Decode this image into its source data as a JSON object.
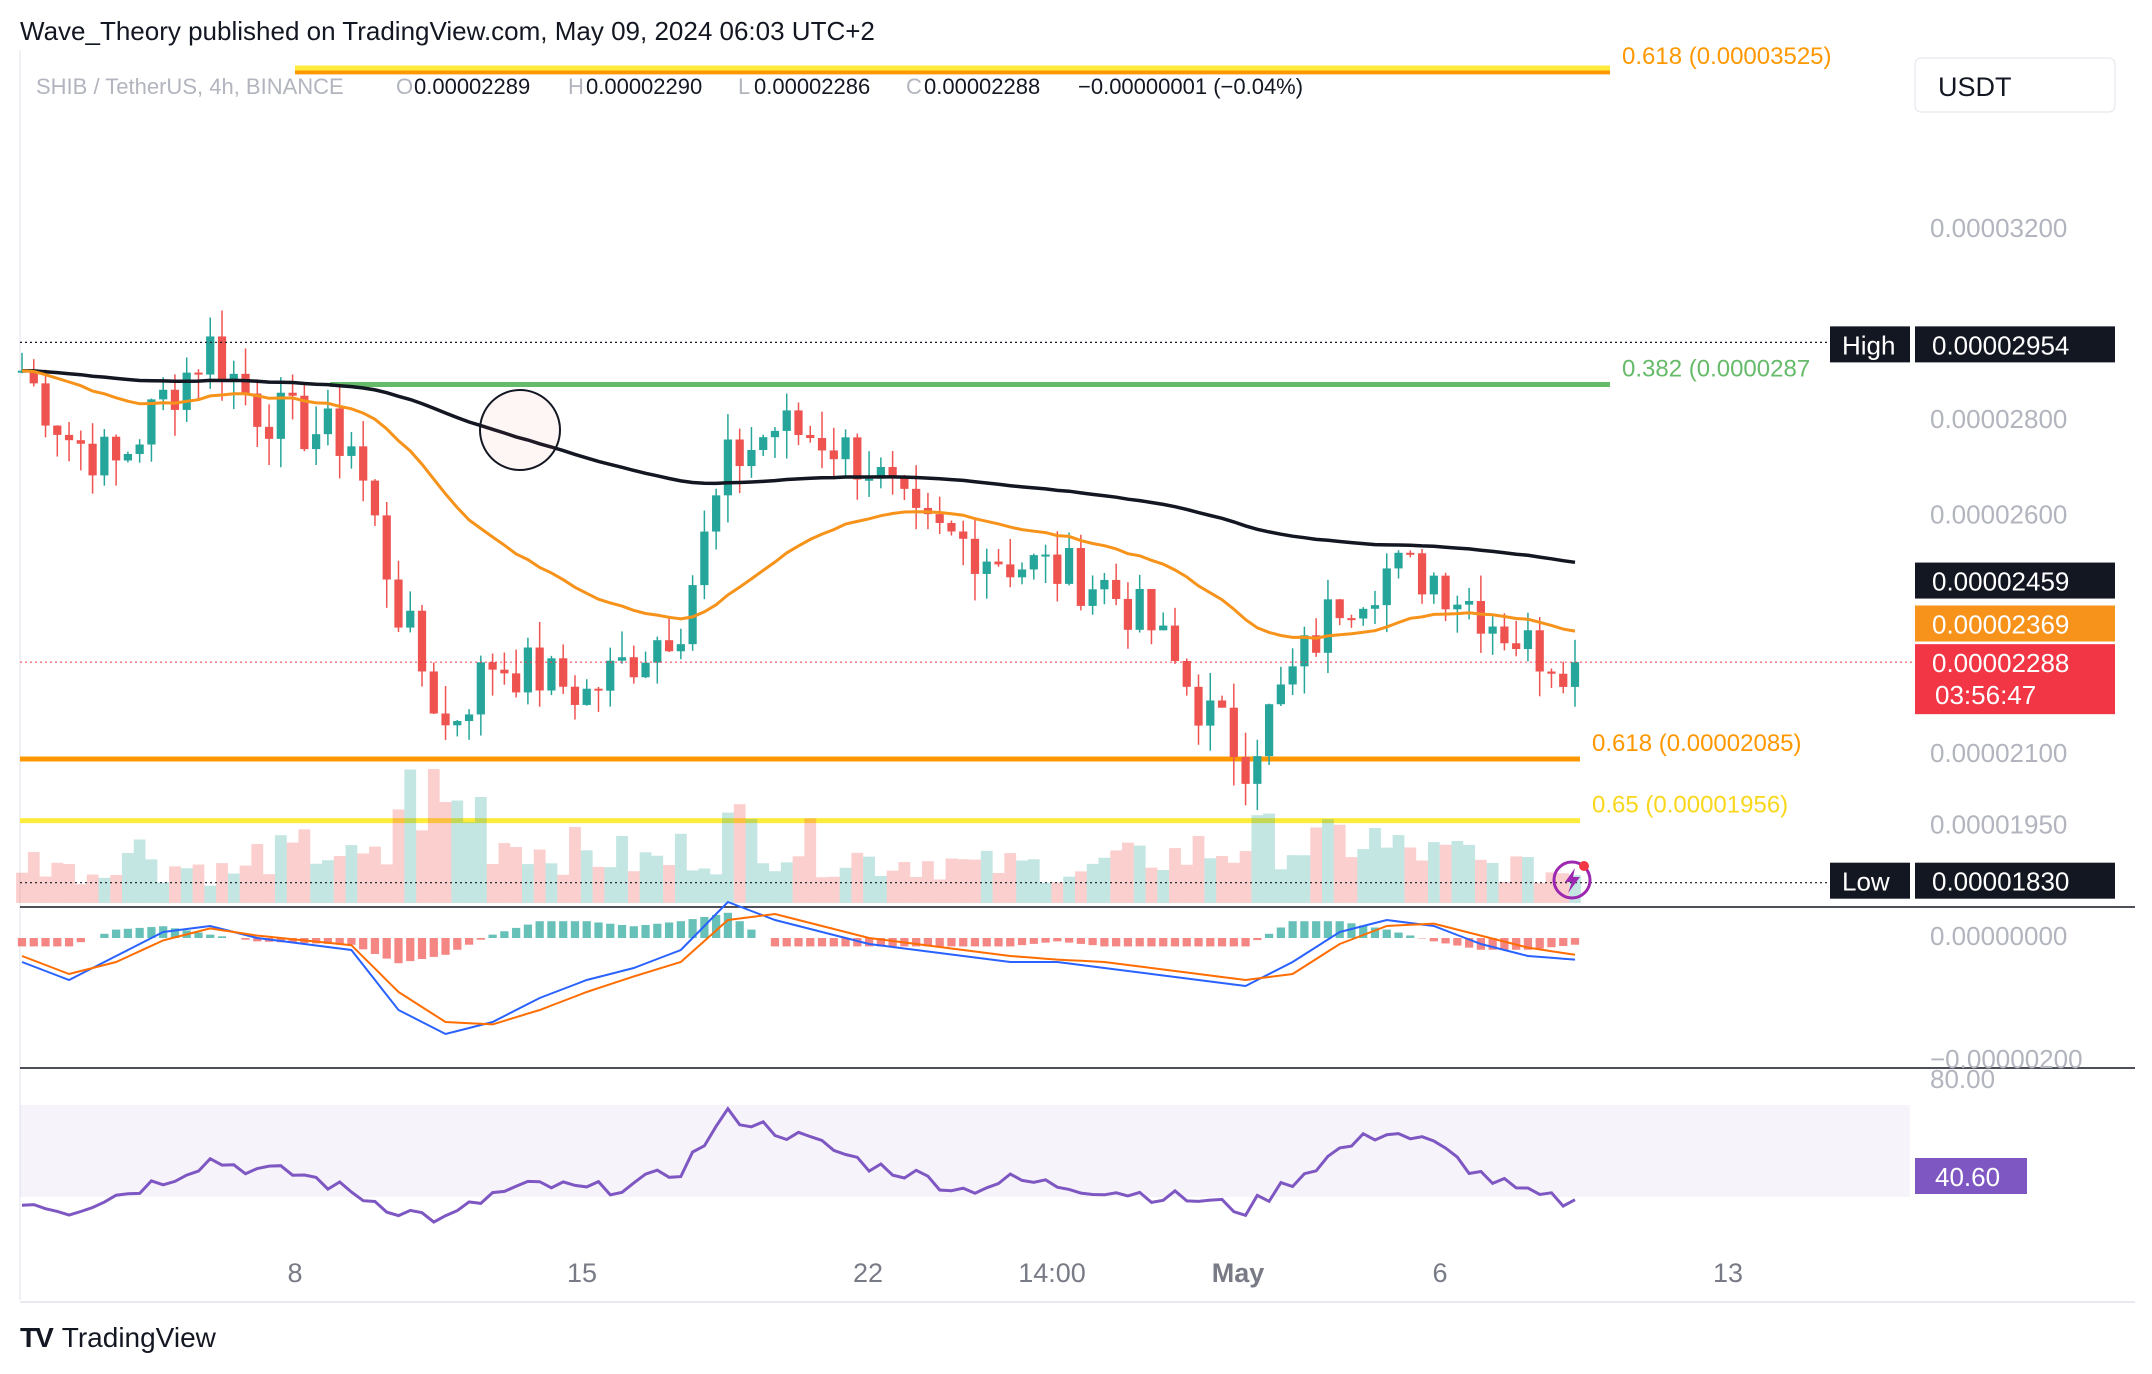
{
  "header": {
    "published": "Wave_Theory published on TradingView.com, May 09, 2024 06:03 UTC+2"
  },
  "symbol_bar": {
    "symbol": "SHIB / TetherUS, 4h, BINANCE",
    "o_label": "O",
    "o": "0.00002289",
    "h_label": "H",
    "h": "0.00002290",
    "l_label": "L",
    "l": "0.00002286",
    "c_label": "C",
    "c": "0.00002288",
    "change": "−0.00000001 (−0.04%)"
  },
  "currency": "USDT",
  "footer": {
    "brand": "TradingView",
    "logo": "TV"
  },
  "colors": {
    "up": "#26a69a",
    "down": "#ef5350",
    "ema_fast": "#f7931a",
    "ema_slow": "#131722",
    "fib_orange": "#ff9800",
    "fib_yellow": "#ffeb3b",
    "fib_green": "#66bb6a",
    "macd": "#2962ff",
    "signal": "#ff6d00",
    "rsi": "#7e57c2",
    "price_label": "#f23645"
  },
  "chart_data": [
    {
      "type": "candlestick",
      "title": "SHIB / TetherUS, 4h, BINANCE",
      "ylim": [
        1.8e-05,
        3.55e-05
      ],
      "y_ticks": [
        "0.00003200",
        "0.00002800",
        "0.00002600",
        "0.00002100",
        "0.00001950"
      ],
      "x_ticks": [
        "8",
        "15",
        "22",
        "14:00",
        "May",
        "6",
        "13"
      ],
      "price_markers": [
        {
          "label": "High",
          "value": "0.00002954"
        },
        {
          "label": "",
          "value": "0.00002459"
        },
        {
          "label": "",
          "value": "0.00002369"
        },
        {
          "label": "",
          "value": "0.00002288",
          "countdown": "03:56:47"
        },
        {
          "label": "Low",
          "value": "0.00001830"
        }
      ],
      "fib_levels": [
        {
          "label": "0.618 (0.00003525)",
          "value": 3.525e-05
        },
        {
          "label": "0.382 (0.0000287",
          "value": 2.87e-05
        },
        {
          "label": "0.618 (0.00002085)",
          "value": 2.085e-05
        },
        {
          "label": "0.65 (0.00001956)",
          "value": 1.956e-05
        }
      ],
      "close_points": [
        [
          "Apr 05",
          2.9e-05
        ],
        [
          "Apr 06",
          2.76e-05
        ],
        [
          "Apr 07",
          2.7e-05
        ],
        [
          "Apr 08",
          2.84e-05
        ],
        [
          "Apr 09",
          2.95e-05
        ],
        [
          "Apr 10",
          2.82e-05
        ],
        [
          "Apr 11",
          2.78e-05
        ],
        [
          "Apr 12",
          2.75e-05
        ],
        [
          "Apr 13",
          2.4e-05
        ],
        [
          "Apr 14",
          2.15e-05
        ],
        [
          "Apr 15",
          2.29e-05
        ],
        [
          "Apr 16",
          2.26e-05
        ],
        [
          "Apr 17",
          2.22e-05
        ],
        [
          "Apr 18",
          2.3e-05
        ],
        [
          "Apr 19",
          2.38e-05
        ],
        [
          "Apr 20",
          2.7e-05
        ],
        [
          "Apr 21",
          2.78e-05
        ],
        [
          "Apr 22",
          2.76e-05
        ],
        [
          "Apr 23",
          2.7e-05
        ],
        [
          "Apr 24",
          2.56e-05
        ],
        [
          "Apr 25",
          2.54e-05
        ],
        [
          "Apr 26",
          2.5e-05
        ],
        [
          "Apr 27",
          2.48e-05
        ],
        [
          "Apr 28",
          2.45e-05
        ],
        [
          "Apr 29",
          2.36e-05
        ],
        [
          "Apr 30",
          2.2e-05
        ],
        [
          "May 01",
          2.09e-05
        ],
        [
          "May 02",
          2.26e-05
        ],
        [
          "May 03",
          2.42e-05
        ],
        [
          "May 04",
          2.48e-05
        ],
        [
          "May 05",
          2.47e-05
        ],
        [
          "May 06",
          2.4e-05
        ],
        [
          "May 07",
          2.32e-05
        ],
        [
          "May 08",
          2.288e-05
        ]
      ],
      "ema_fast_name": "",
      "ema_slow_name": ""
    },
    {
      "type": "area",
      "title": "",
      "series": [
        {
          "name": "",
          "values": [
            0.4,
            0.3,
            0.5,
            0.35,
            0.3,
            0.45,
            0.5,
            0.4,
            1.0,
            0.9,
            0.6,
            0.5,
            0.45,
            0.4,
            0.5,
            0.7,
            0.55,
            0.45,
            0.4,
            0.4,
            0.35,
            0.35,
            0.3,
            0.4,
            0.45,
            0.5,
            0.6,
            0.55,
            0.6,
            0.5,
            0.45,
            0.35,
            0.3,
            0.3
          ]
        }
      ]
    },
    {
      "type": "line",
      "title": "",
      "y_ticks": [
        "0.00000000",
        "−0.00000200"
      ],
      "series": [
        {
          "name": "",
          "values": [
            -0.2,
            -0.35,
            -0.15,
            0.05,
            0.1,
            0.0,
            -0.05,
            -0.1,
            -0.6,
            -0.8,
            -0.7,
            -0.5,
            -0.35,
            -0.25,
            -0.1,
            0.3,
            0.15,
            0.05,
            -0.05,
            -0.1,
            -0.15,
            -0.2,
            -0.2,
            -0.25,
            -0.3,
            -0.35,
            -0.4,
            -0.2,
            0.05,
            0.15,
            0.1,
            -0.05,
            -0.15,
            -0.18
          ]
        },
        {
          "name": "",
          "values": [
            -0.15,
            -0.3,
            -0.2,
            -0.02,
            0.08,
            0.02,
            -0.02,
            -0.06,
            -0.45,
            -0.7,
            -0.72,
            -0.6,
            -0.45,
            -0.32,
            -0.2,
            0.15,
            0.2,
            0.1,
            0.0,
            -0.05,
            -0.1,
            -0.15,
            -0.18,
            -0.2,
            -0.25,
            -0.3,
            -0.35,
            -0.3,
            -0.05,
            0.1,
            0.12,
            0.02,
            -0.08,
            -0.14
          ]
        }
      ]
    },
    {
      "type": "line",
      "title": "",
      "y_ticks": [
        "80.00"
      ],
      "current": "40.60",
      "series": [
        {
          "name": "",
          "values": [
            42,
            38,
            44,
            50,
            58,
            54,
            52,
            45,
            38,
            34,
            44,
            48,
            46,
            48,
            54,
            76,
            70,
            64,
            56,
            52,
            46,
            50,
            48,
            46,
            44,
            42,
            38,
            50,
            62,
            70,
            64,
            52,
            44,
            40.6
          ]
        }
      ]
    }
  ]
}
